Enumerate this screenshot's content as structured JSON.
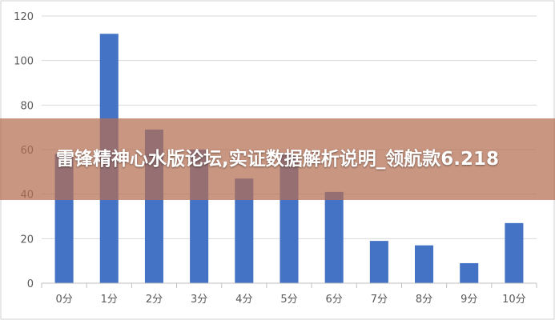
{
  "banner": {
    "text": "雷锋精神心水版论坛,实证数据解析说明_领航款6.218"
  },
  "colors": {
    "bar": "#4472c4",
    "grid": "#d9d9d9",
    "axis": "#bfbfbf",
    "frame": "#d0d0d0",
    "banner": "#b46e50"
  },
  "chart_data": {
    "type": "bar",
    "title": "",
    "xlabel": "",
    "ylabel": "",
    "categories": [
      "0分",
      "1分",
      "2分",
      "3分",
      "4分",
      "5分",
      "6分",
      "7分",
      "8分",
      "9分",
      "10分"
    ],
    "values": [
      58,
      112,
      69,
      60,
      47,
      58,
      41,
      19,
      17,
      9,
      27
    ],
    "ylim": [
      0,
      120
    ],
    "yticks": [
      0,
      20,
      40,
      60,
      80,
      100,
      120
    ],
    "grid": true,
    "legend": "none"
  }
}
